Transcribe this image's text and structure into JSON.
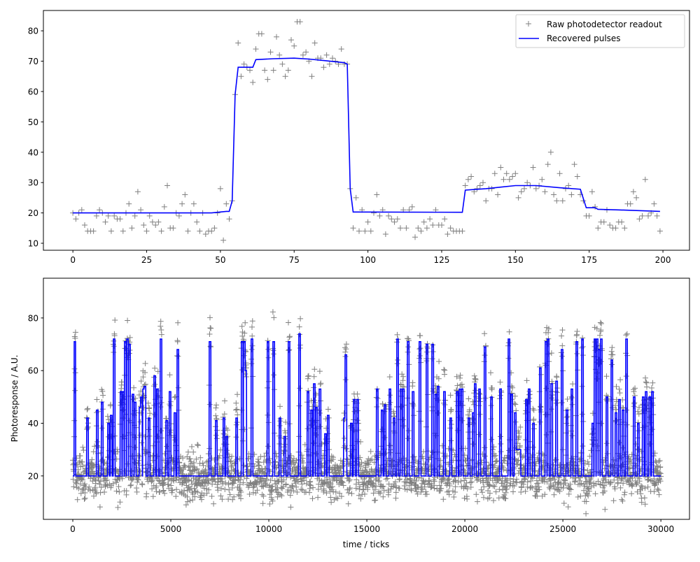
{
  "colors": {
    "raw": "#808080",
    "recovered": "#0000ff"
  },
  "chart_data": [
    {
      "type": "line",
      "panel": "top",
      "xlim": [
        -10,
        209
      ],
      "ylim": [
        7.7,
        86.7
      ],
      "xticks": [
        0,
        25,
        50,
        75,
        100,
        125,
        150,
        175,
        200
      ],
      "yticks": [
        10,
        20,
        30,
        40,
        50,
        60,
        70,
        80
      ],
      "grid": false,
      "legend_position": "top-right",
      "legend": [
        "Raw photodetector readout",
        "Recovered pulses"
      ],
      "series": [
        {
          "name": "Raw photodetector readout",
          "marker": "plus-icon",
          "x_start": 0,
          "values": [
            20,
            18,
            20,
            21,
            16,
            14,
            14,
            14,
            19,
            21,
            20,
            17,
            19,
            14,
            19,
            18,
            18,
            14,
            20,
            23,
            15,
            19,
            27,
            21,
            16,
            14,
            19,
            17,
            16,
            17,
            14,
            22,
            29,
            15,
            15,
            20,
            19,
            23,
            26,
            14,
            20,
            23,
            17,
            14,
            20,
            13,
            14,
            14,
            15,
            20,
            28,
            11,
            23,
            18,
            24,
            59,
            76,
            65,
            69,
            68,
            67,
            63,
            74,
            79,
            79,
            67,
            64,
            73,
            67,
            78,
            72,
            69,
            65,
            67,
            77,
            75,
            83,
            83,
            72,
            73,
            70,
            65,
            76,
            71,
            71,
            68,
            72,
            69,
            71,
            70,
            69,
            74,
            69,
            69,
            28,
            15,
            25,
            14,
            21,
            14,
            17,
            14,
            20,
            26,
            19,
            21,
            13,
            19,
            18,
            17,
            18,
            15,
            21,
            15,
            21,
            22,
            12,
            15,
            14,
            17,
            15,
            18,
            16,
            21,
            16,
            16,
            18,
            13,
            15,
            14,
            14,
            14,
            14,
            29,
            31,
            32,
            27,
            28,
            29,
            30,
            24,
            28,
            28,
            33,
            26,
            35,
            31,
            33,
            31,
            32,
            33,
            25,
            27,
            28,
            30,
            29,
            35,
            28,
            29,
            31,
            27,
            36,
            40,
            26,
            24,
            33,
            24,
            28,
            29,
            26,
            36,
            32,
            26,
            24,
            19,
            19,
            27,
            22,
            15,
            17,
            17,
            21,
            16,
            15,
            15,
            17,
            17,
            15,
            23,
            23,
            27,
            25,
            18,
            19,
            31,
            19,
            20,
            23,
            19,
            14
          ]
        },
        {
          "name": "Recovered pulses",
          "points": [
            [
              0,
              20
            ],
            [
              47,
              20
            ],
            [
              52,
              20.5
            ],
            [
              53,
              20.5
            ],
            [
              54,
              24
            ],
            [
              55,
              59
            ],
            [
              56,
              68
            ],
            [
              61,
              68
            ],
            [
              62,
              70.5
            ],
            [
              68,
              70.8
            ],
            [
              75,
              71
            ],
            [
              80,
              70.7
            ],
            [
              85,
              70.2
            ],
            [
              92,
              69.5
            ],
            [
              93,
              69
            ],
            [
              94,
              28
            ],
            [
              95,
              20.3
            ],
            [
              132,
              20.2
            ],
            [
              133,
              27.5
            ],
            [
              140,
              28
            ],
            [
              145,
              28.5
            ],
            [
              150,
              29
            ],
            [
              157,
              29
            ],
            [
              165,
              28.3
            ],
            [
              172,
              27.8
            ],
            [
              174,
              21.7
            ],
            [
              177,
              21.7
            ],
            [
              178,
              21.2
            ],
            [
              185,
              21
            ],
            [
              199,
              20.5
            ]
          ]
        }
      ]
    },
    {
      "type": "line",
      "panel": "bottom",
      "xlabel": "time / ticks",
      "ylabel": "Photoresponse / A.U.",
      "xlim": [
        -1500,
        31460
      ],
      "ylim": [
        3.5,
        95.1
      ],
      "xticks": [
        0,
        5000,
        10000,
        15000,
        20000,
        25000,
        30000
      ],
      "yticks": [
        20,
        40,
        60,
        80
      ],
      "grid": false,
      "x_range": [
        0,
        30000
      ],
      "baseline": 20,
      "series": [
        {
          "name": "Raw photodetector readout",
          "marker": "plus-icon"
        },
        {
          "name": "Recovered pulses",
          "pulses_tick_level": [
            [
              107,
              71
            ],
            [
              750,
              42
            ],
            [
              1250,
              45
            ],
            [
              1500,
              48
            ],
            [
              1820,
              40
            ],
            [
              1960,
              43
            ],
            [
              2110,
              72
            ],
            [
              2460,
              52
            ],
            [
              2570,
              52
            ],
            [
              2680,
              71
            ],
            [
              2790,
              72
            ],
            [
              2890,
              70
            ],
            [
              3070,
              51
            ],
            [
              3180,
              48
            ],
            [
              3430,
              46
            ],
            [
              3500,
              50
            ],
            [
              3610,
              53
            ],
            [
              3680,
              54
            ],
            [
              3890,
              42
            ],
            [
              4180,
              58
            ],
            [
              4320,
              53
            ],
            [
              4500,
              72
            ],
            [
              4790,
              41
            ],
            [
              4960,
              52
            ],
            [
              5210,
              44
            ],
            [
              5360,
              68
            ],
            [
              7000,
              71
            ],
            [
              7320,
              41
            ],
            [
              7710,
              42
            ],
            [
              7860,
              35
            ],
            [
              8360,
              42
            ],
            [
              8640,
              71
            ],
            [
              8750,
              71
            ],
            [
              8820,
              60
            ],
            [
              9140,
              72
            ],
            [
              9960,
              71
            ],
            [
              10250,
              71
            ],
            [
              10570,
              42
            ],
            [
              10820,
              35
            ],
            [
              11030,
              71
            ],
            [
              11570,
              74
            ],
            [
              12000,
              52
            ],
            [
              12180,
              45
            ],
            [
              12320,
              55
            ],
            [
              12430,
              46
            ],
            [
              12610,
              53
            ],
            [
              12890,
              36
            ],
            [
              13030,
              43
            ],
            [
              13860,
              42
            ],
            [
              13930,
              66
            ],
            [
              14210,
              40
            ],
            [
              14360,
              49
            ],
            [
              14530,
              49
            ],
            [
              15530,
              53
            ],
            [
              15780,
              45
            ],
            [
              15930,
              47
            ],
            [
              16180,
              53
            ],
            [
              16390,
              42
            ],
            [
              16570,
              72
            ],
            [
              16750,
              53
            ],
            [
              16860,
              53
            ],
            [
              17110,
              71
            ],
            [
              17360,
              52
            ],
            [
              17710,
              71
            ],
            [
              18070,
              70
            ],
            [
              18360,
              70
            ],
            [
              18530,
              51
            ],
            [
              18640,
              54
            ],
            [
              18960,
              52
            ],
            [
              19280,
              42
            ],
            [
              19610,
              52
            ],
            [
              19750,
              53
            ],
            [
              19860,
              53
            ],
            [
              20210,
              42
            ],
            [
              20430,
              44
            ],
            [
              20530,
              55
            ],
            [
              20750,
              53
            ],
            [
              21030,
              69
            ],
            [
              21360,
              50
            ],
            [
              21820,
              53
            ],
            [
              22250,
              72
            ],
            [
              22390,
              51
            ],
            [
              22570,
              44
            ],
            [
              23140,
              49
            ],
            [
              23280,
              53
            ],
            [
              23500,
              40
            ],
            [
              23850,
              61
            ],
            [
              24140,
              71
            ],
            [
              24250,
              72
            ],
            [
              24430,
              55
            ],
            [
              24680,
              56
            ],
            [
              24960,
              68
            ],
            [
              25210,
              45
            ],
            [
              25460,
              53
            ],
            [
              25710,
              71
            ],
            [
              26000,
              72
            ],
            [
              26530,
              40
            ],
            [
              26640,
              72
            ],
            [
              26750,
              72
            ],
            [
              26850,
              68
            ],
            [
              26960,
              72
            ],
            [
              27250,
              50
            ],
            [
              27500,
              64
            ],
            [
              27710,
              44
            ],
            [
              27890,
              49
            ],
            [
              28070,
              45
            ],
            [
              28250,
              72
            ],
            [
              28640,
              50
            ],
            [
              28850,
              40
            ],
            [
              29100,
              50
            ],
            [
              29250,
              52
            ],
            [
              29430,
              50
            ],
            [
              29570,
              52
            ]
          ],
          "plateaus_tick_range_level": [
            [
              22600,
              22850,
              30
            ]
          ]
        }
      ]
    }
  ]
}
